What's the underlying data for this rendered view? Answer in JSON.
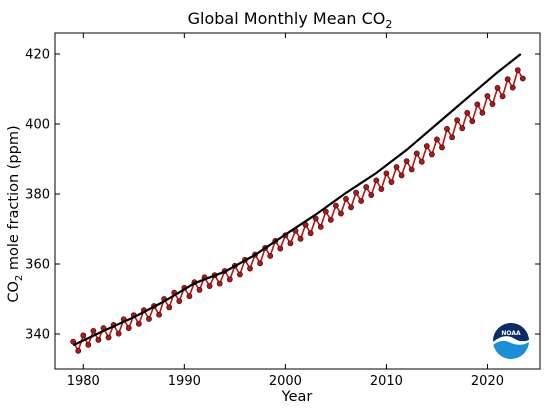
{
  "chart_data": {
    "type": "line",
    "title_main": "Global Monthly Mean CO",
    "title_sub": "2",
    "xlabel": "Year",
    "ylabel_pre": "CO",
    "ylabel_sub": "2",
    "ylabel_post": " mole fraction (ppm)",
    "xlim": [
      1977.2,
      2025.2
    ],
    "ylim": [
      330,
      426
    ],
    "xticks": [
      1980,
      1990,
      2000,
      2010,
      2020
    ],
    "yticks": [
      340,
      360,
      380,
      400,
      420
    ],
    "grid": false,
    "series": [
      {
        "style": "points",
        "color": "#b01818",
        "x": [
          1979.0,
          1979.5,
          1980.0,
          1980.5,
          1981.0,
          1981.5,
          1982.0,
          1982.5,
          1983.0,
          1983.5,
          1984.0,
          1984.5,
          1985.0,
          1985.5,
          1986.0,
          1986.5,
          1987.0,
          1987.5,
          1988.0,
          1988.5,
          1989.0,
          1989.5,
          1990.0,
          1990.5,
          1991.0,
          1991.5,
          1992.0,
          1992.5,
          1993.0,
          1993.5,
          1994.0,
          1994.5,
          1995.0,
          1995.5,
          1996.0,
          1996.5,
          1997.0,
          1997.5,
          1998.0,
          1998.5,
          1999.0,
          1999.5,
          2000.0,
          2000.5,
          2001.0,
          2001.5,
          2002.0,
          2002.5,
          2003.0,
          2003.5,
          2004.0,
          2004.5,
          2005.0,
          2005.5,
          2006.0,
          2006.5,
          2007.0,
          2007.5,
          2008.0,
          2008.5,
          2009.0,
          2009.5,
          2010.0,
          2010.5,
          2011.0,
          2011.5,
          2012.0,
          2012.5,
          2013.0,
          2013.5,
          2014.0,
          2014.5,
          2015.0,
          2015.5,
          2016.0,
          2016.5,
          2017.0,
          2017.5,
          2018.0,
          2018.5,
          2019.0,
          2019.5,
          2020.0,
          2020.5,
          2021.0,
          2021.5,
          2022.0,
          2022.5,
          2023.0,
          2023.5
        ],
        "y": [
          337.8,
          335.2,
          339.6,
          336.9,
          340.9,
          338.3,
          341.7,
          339.0,
          342.6,
          340.1,
          344.2,
          341.7,
          345.4,
          342.9,
          346.8,
          344.3,
          348.0,
          345.5,
          350.0,
          347.6,
          351.8,
          349.4,
          353.2,
          350.8,
          354.8,
          352.6,
          356.2,
          353.7,
          356.8,
          354.4,
          358.0,
          355.6,
          359.5,
          357.0,
          361.2,
          358.7,
          362.7,
          360.2,
          364.6,
          362.3,
          366.6,
          364.4,
          368.2,
          365.9,
          369.5,
          367.2,
          371.2,
          368.8,
          373.0,
          370.6,
          375.0,
          372.6,
          376.7,
          374.4,
          378.6,
          376.2,
          380.4,
          378.0,
          382.0,
          379.7,
          383.9,
          381.4,
          385.9,
          383.4,
          387.7,
          385.3,
          389.4,
          387.0,
          391.6,
          389.2,
          393.7,
          391.3,
          395.6,
          393.3,
          398.6,
          396.2,
          401.1,
          398.8,
          403.2,
          400.8,
          405.6,
          403.2,
          408.0,
          405.7,
          410.3,
          407.9,
          412.8,
          410.4,
          415.4,
          413.0
        ]
      },
      {
        "style": "line",
        "color": "#000000",
        "x": [
          1979.0,
          1982.0,
          1985.0,
          1988.0,
          1991.0,
          1994.0,
          1997.0,
          2000.0,
          2003.0,
          2006.0,
          2009.0,
          2012.0,
          2015.0,
          2018.0,
          2021.0,
          2023.3
        ],
        "y": [
          336.8,
          340.9,
          344.8,
          349.3,
          354.5,
          357.8,
          362.6,
          368.4,
          374.1,
          380.3,
          386.0,
          392.6,
          400.0,
          407.4,
          414.8,
          420.0
        ]
      }
    ]
  },
  "logo": {
    "text": "NOAA"
  }
}
